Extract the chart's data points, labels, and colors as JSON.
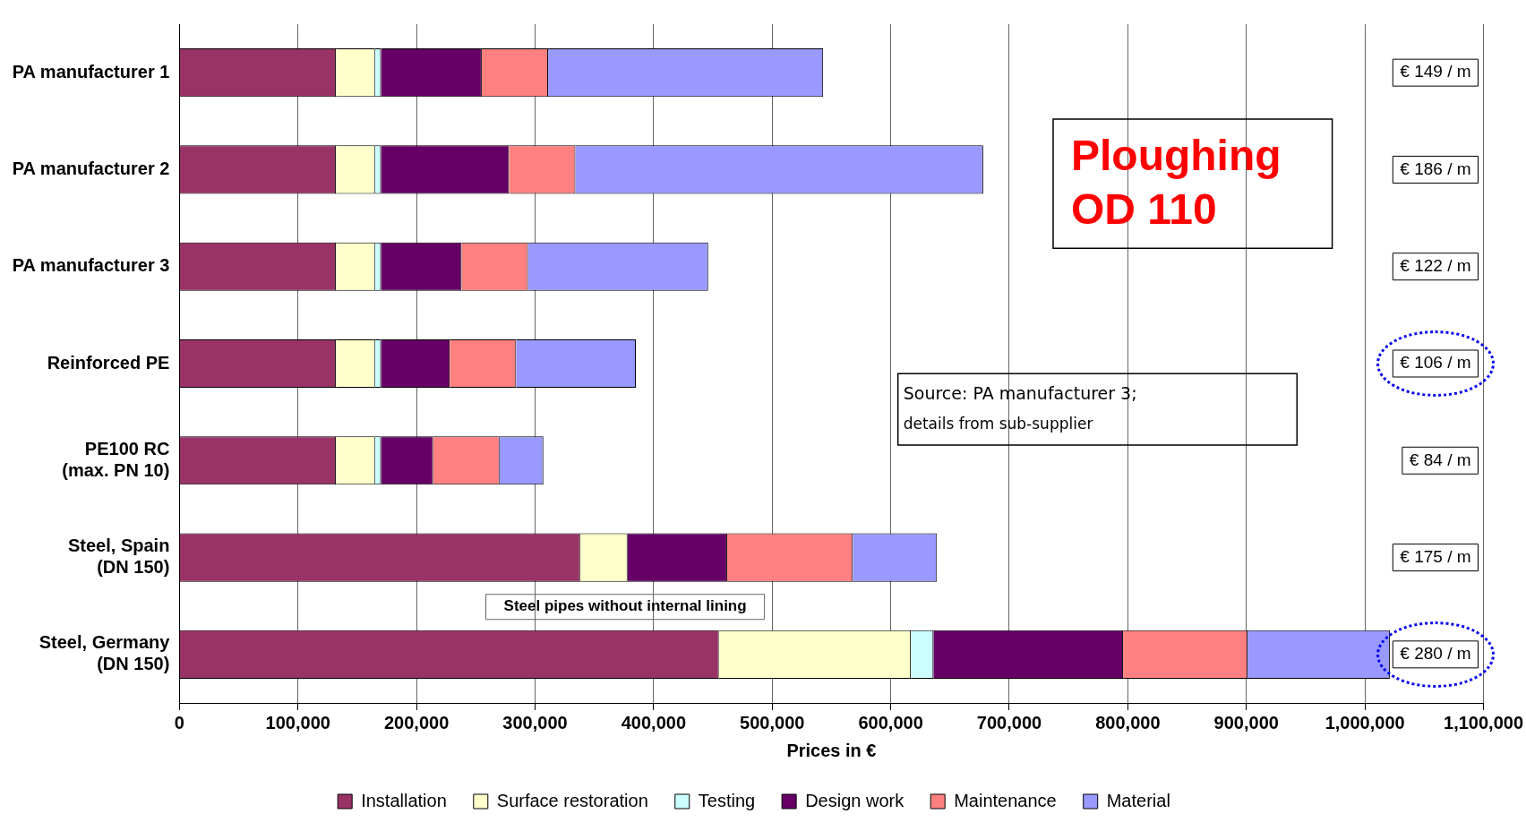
{
  "chart_data": {
    "type": "bar",
    "orientation": "horizontal",
    "stacked": true,
    "categories": [
      "PA manufacturer 1",
      "PA manufacturer 2",
      "PA manufacturer 3",
      "Reinforced PE",
      "PE100 RC\n(max. PN 10)",
      "Steel, Spain\n(DN 150)",
      "Steel, Germany\n(DN 150)"
    ],
    "series": [
      {
        "name": "Installation",
        "color": "#993366",
        "values": [
          132000,
          132000,
          132000,
          132000,
          132000,
          338000,
          455000
        ]
      },
      {
        "name": "Surface restoration",
        "color": "#ffffcc",
        "values": [
          33000,
          33000,
          33000,
          33000,
          33000,
          40000,
          162000
        ]
      },
      {
        "name": "Testing",
        "color": "#ccffff",
        "values": [
          5000,
          5000,
          5000,
          5000,
          5000,
          0,
          19000
        ]
      },
      {
        "name": "Design work",
        "color": "#660066",
        "values": [
          85000,
          108000,
          68000,
          58000,
          44000,
          84000,
          160000
        ]
      },
      {
        "name": "Maintenance",
        "color": "#ff8080",
        "values": [
          56000,
          56000,
          56000,
          56000,
          56000,
          106000,
          105000
        ]
      },
      {
        "name": "Material",
        "color": "#9999ff",
        "values": [
          232000,
          344000,
          152000,
          101000,
          37000,
          71000,
          120000
        ]
      }
    ],
    "xlabel": "Prices in €",
    "xlim": [
      0,
      1100000
    ],
    "xticks": [
      {
        "value": 0,
        "label": "0"
      },
      {
        "value": 100000,
        "label": "100,000"
      },
      {
        "value": 200000,
        "label": "200,000"
      },
      {
        "value": 300000,
        "label": "300,000"
      },
      {
        "value": 400000,
        "label": "400,000"
      },
      {
        "value": 500000,
        "label": "500,000"
      },
      {
        "value": 600000,
        "label": "600,000"
      },
      {
        "value": 700000,
        "label": "700,000"
      },
      {
        "value": 800000,
        "label": "800,000"
      },
      {
        "value": 900000,
        "label": "900,000"
      },
      {
        "value": 1000000,
        "label": "1,000,000"
      },
      {
        "value": 1100000,
        "label": "1,100,000"
      }
    ],
    "grid": "x",
    "legend": "bottom",
    "annotations": [
      "Ploughing OD 110",
      "Source: PA manufacturer 3; details from sub-supplier",
      "Steel pipes without internal lining",
      "€ 149 / m",
      "€ 186 / m",
      "€ 122 / m",
      "€ 106 / m",
      "€ 84 / m",
      "€ 175 / m",
      "€ 280 / m"
    ]
  }
}
